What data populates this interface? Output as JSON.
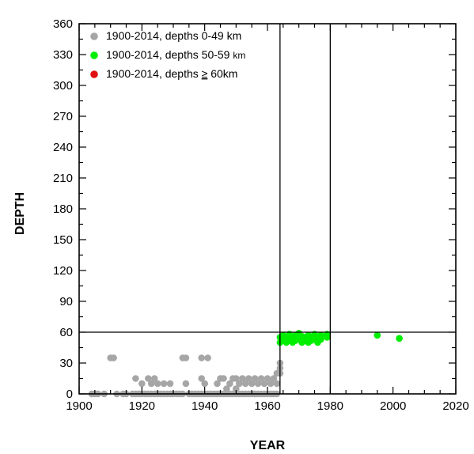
{
  "chart_data": {
    "type": "scatter",
    "title": "",
    "xlabel": "YEAR",
    "ylabel": "DEPTH",
    "xlim": [
      1900,
      2020
    ],
    "ylim": [
      0,
      360
    ],
    "y_inverted": false,
    "xticks": [
      1900,
      1920,
      1940,
      1960,
      1980,
      2000,
      2020
    ],
    "xtick_labels": [
      "1900",
      "1920",
      "1940",
      "1960",
      "1980",
      "2000",
      "2020"
    ],
    "yticks": [
      0,
      30,
      60,
      90,
      120,
      150,
      180,
      210,
      240,
      270,
      300,
      330,
      360
    ],
    "ytick_labels": [
      "0",
      "30",
      "60",
      "90",
      "120",
      "150",
      "180",
      "210",
      "240",
      "270",
      "300",
      "330",
      "360"
    ],
    "grid": false,
    "legend_position": "top-left",
    "reference_lines": {
      "vertical_x": [
        1964,
        1980
      ],
      "horizontal_y": [
        60
      ]
    },
    "series": [
      {
        "legend_text": "1900-2014, depths 0-49 km",
        "legend_parts": [
          "1900-2014, depths 0-49 km"
        ],
        "color": "#a6a6a6",
        "points": [
          [
            1904,
            0
          ],
          [
            1905,
            0
          ],
          [
            1906,
            0
          ],
          [
            1908,
            0
          ],
          [
            1910,
            35
          ],
          [
            1911,
            35
          ],
          [
            1912,
            0
          ],
          [
            1914,
            0
          ],
          [
            1915,
            0
          ],
          [
            1917,
            0
          ],
          [
            1918,
            0
          ],
          [
            1918,
            15
          ],
          [
            1919,
            0
          ],
          [
            1920,
            0
          ],
          [
            1920,
            10
          ],
          [
            1921,
            0
          ],
          [
            1922,
            0
          ],
          [
            1922,
            15
          ],
          [
            1923,
            0
          ],
          [
            1923,
            10
          ],
          [
            1924,
            15
          ],
          [
            1924,
            0
          ],
          [
            1925,
            0
          ],
          [
            1925,
            10
          ],
          [
            1926,
            0
          ],
          [
            1927,
            0
          ],
          [
            1927,
            10
          ],
          [
            1928,
            0
          ],
          [
            1929,
            0
          ],
          [
            1929,
            10
          ],
          [
            1930,
            0
          ],
          [
            1931,
            0
          ],
          [
            1932,
            0
          ],
          [
            1933,
            35
          ],
          [
            1933,
            0
          ],
          [
            1934,
            35
          ],
          [
            1934,
            10
          ],
          [
            1935,
            0
          ],
          [
            1936,
            0
          ],
          [
            1937,
            0
          ],
          [
            1938,
            0
          ],
          [
            1939,
            35
          ],
          [
            1939,
            15
          ],
          [
            1939,
            0
          ],
          [
            1940,
            10
          ],
          [
            1940,
            0
          ],
          [
            1941,
            35
          ],
          [
            1941,
            0
          ],
          [
            1942,
            0
          ],
          [
            1943,
            0
          ],
          [
            1944,
            0
          ],
          [
            1944,
            10
          ],
          [
            1945,
            15
          ],
          [
            1945,
            0
          ],
          [
            1946,
            15
          ],
          [
            1946,
            0
          ],
          [
            1947,
            0
          ],
          [
            1947,
            5
          ],
          [
            1948,
            10
          ],
          [
            1948,
            0
          ],
          [
            1949,
            0
          ],
          [
            1949,
            15
          ],
          [
            1950,
            15
          ],
          [
            1950,
            5
          ],
          [
            1950,
            0
          ],
          [
            1951,
            0
          ],
          [
            1951,
            10
          ],
          [
            1952,
            15
          ],
          [
            1952,
            0
          ],
          [
            1953,
            0
          ],
          [
            1953,
            10
          ],
          [
            1954,
            15
          ],
          [
            1954,
            0
          ],
          [
            1955,
            0
          ],
          [
            1955,
            10
          ],
          [
            1956,
            15
          ],
          [
            1956,
            0
          ],
          [
            1957,
            0
          ],
          [
            1957,
            10
          ],
          [
            1958,
            15
          ],
          [
            1958,
            0
          ],
          [
            1959,
            0
          ],
          [
            1959,
            10
          ],
          [
            1960,
            15
          ],
          [
            1960,
            0
          ],
          [
            1961,
            0
          ],
          [
            1961,
            10
          ],
          [
            1962,
            15
          ],
          [
            1962,
            0
          ],
          [
            1963,
            0
          ],
          [
            1963,
            10
          ],
          [
            1963,
            20
          ],
          [
            1964,
            30
          ],
          [
            1964,
            25
          ],
          [
            1964,
            20
          ]
        ]
      },
      {
        "legend_text": "1900-2014, depths 50-59 km",
        "legend_parts": [
          "1900-2014, depths 50-59 ",
          "km"
        ],
        "color": "#00ee00",
        "points": [
          [
            1964,
            50
          ],
          [
            1964,
            55
          ],
          [
            1965,
            52
          ],
          [
            1965,
            57
          ],
          [
            1966,
            55
          ],
          [
            1966,
            50
          ],
          [
            1967,
            58
          ],
          [
            1967,
            53
          ],
          [
            1968,
            55
          ],
          [
            1968,
            50
          ],
          [
            1969,
            57
          ],
          [
            1969,
            52
          ],
          [
            1970,
            55
          ],
          [
            1970,
            59
          ],
          [
            1971,
            50
          ],
          [
            1971,
            56
          ],
          [
            1972,
            55
          ],
          [
            1972,
            52
          ],
          [
            1973,
            50
          ],
          [
            1973,
            57
          ],
          [
            1974,
            55
          ],
          [
            1974,
            52
          ],
          [
            1975,
            58
          ],
          [
            1975,
            53
          ],
          [
            1976,
            55
          ],
          [
            1976,
            50
          ],
          [
            1977,
            57
          ],
          [
            1977,
            53
          ],
          [
            1979,
            55
          ],
          [
            1979,
            58
          ],
          [
            1995,
            57
          ],
          [
            2002,
            54
          ]
        ]
      },
      {
        "legend_text": "1900-2014, depths ≥ 60km",
        "legend_parts": [
          "1900-2014, depths ",
          "≥",
          " 60km"
        ],
        "color": "#e01010",
        "points": []
      }
    ]
  }
}
